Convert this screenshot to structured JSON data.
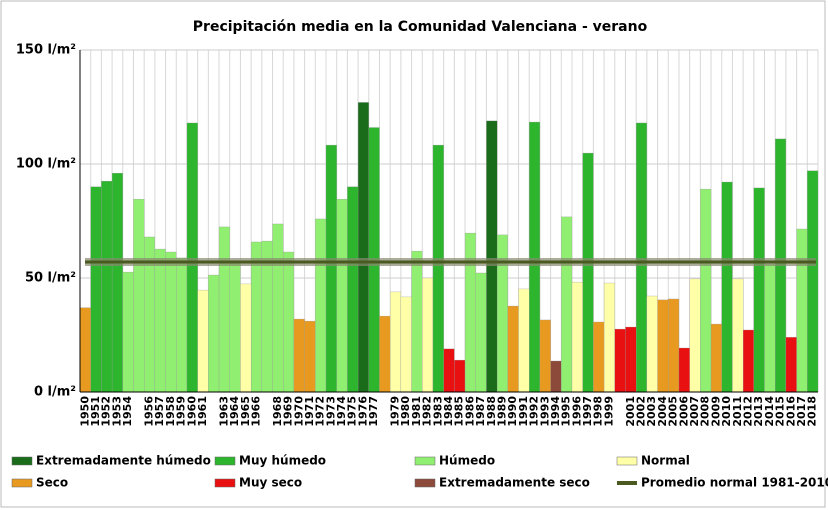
{
  "chart_data": {
    "type": "bar",
    "title": "Precipitación media en la Comunidad Valenciana - verano",
    "categories": [
      "1950",
      "1951",
      "1952",
      "1953",
      "1954",
      null,
      "1956",
      "1957",
      "1958",
      "1959",
      "1960",
      "1961",
      null,
      "1963",
      "1964",
      "1965",
      "1966",
      null,
      "1968",
      "1969",
      "1970",
      "1971",
      "1972",
      "1973",
      "1974",
      "1975",
      "1976",
      "1977",
      null,
      "1979",
      "1980",
      "1981",
      "1982",
      "1983",
      "1984",
      "1985",
      "1986",
      "1987",
      "1988",
      "1989",
      "1990",
      "1991",
      "1992",
      "1993",
      "1994",
      "1995",
      "1996",
      "1997",
      "1998",
      "1999",
      null,
      "2001",
      "2002",
      "2003",
      "2004",
      "2005",
      "2006",
      "2007",
      "2008",
      "2009",
      "2010",
      "2011",
      "2012",
      "2013",
      "2014",
      "2015",
      "2016",
      "2017",
      "2018"
    ],
    "values": [
      37,
      90,
      92.5,
      96,
      52.6,
      84.6,
      68,
      62.7,
      61.4,
      58.8,
      118,
      44.7,
      51.3,
      72.4,
      57,
      47.4,
      65.8,
      66.2,
      73.7,
      61.4,
      32,
      31.1,
      75.9,
      108.3,
      84.6,
      90,
      127,
      116,
      33.3,
      43.9,
      41.7,
      61.8,
      50,
      108.3,
      18.9,
      14,
      69.7,
      52.2,
      118.9,
      68.9,
      37.7,
      45.2,
      118.4,
      31.6,
      13.6,
      76.8,
      48.2,
      104.8,
      30.7,
      47.8,
      27.6,
      28.5,
      118,
      42.1,
      40.4,
      40.8,
      19.3,
      49.6,
      89,
      29.8,
      92.1,
      49.6,
      27.2,
      89.5,
      56,
      111,
      24,
      71.5,
      97
    ],
    "colors": [
      "#e89a20",
      "#2db52d",
      "#2db52d",
      "#2db52d",
      "#90ee70",
      "#90ee70",
      "#90ee70",
      "#90ee70",
      "#90ee70",
      "#90ee70",
      "#2db52d",
      "#ffffa8",
      "#90ee70",
      "#90ee70",
      "#90ee70",
      "#ffffa8",
      "#90ee70",
      "#90ee70",
      "#90ee70",
      "#90ee70",
      "#e89a20",
      "#e89a20",
      "#90ee70",
      "#2db52d",
      "#90ee70",
      "#2db52d",
      "#1a6b1a",
      "#2db52d",
      "#e89a20",
      "#ffffa8",
      "#ffffa8",
      "#90ee70",
      "#ffffa8",
      "#2db52d",
      "#e81010",
      "#e81010",
      "#90ee70",
      "#90ee70",
      "#1a6b1a",
      "#90ee70",
      "#e89a20",
      "#ffffa8",
      "#2db52d",
      "#e89a20",
      "#8b4a3a",
      "#90ee70",
      "#ffffa8",
      "#2db52d",
      "#e89a20",
      "#ffffa8",
      "#e81010",
      "#e81010",
      "#2db52d",
      "#ffffa8",
      "#e89a20",
      "#e89a20",
      "#e81010",
      "#ffffa8",
      "#90ee70",
      "#e89a20",
      "#2db52d",
      "#ffffa8",
      "#e81010",
      "#2db52d",
      "#90ee70",
      "#2db52d",
      "#e81010",
      "#90ee70",
      "#2db52d"
    ],
    "legend": [
      {
        "name": "Extremadamente húmedo",
        "color": "#1a6b1a"
      },
      {
        "name": "Muy húmedo",
        "color": "#2db52d"
      },
      {
        "name": "Húmedo",
        "color": "#90ee70"
      },
      {
        "name": "Normal",
        "color": "#ffffa8"
      },
      {
        "name": "Seco",
        "color": "#e89a20"
      },
      {
        "name": "Muy seco",
        "color": "#e81010"
      },
      {
        "name": "Extremadamente seco",
        "color": "#8b4a3a"
      }
    ],
    "average": {
      "name": "Promedio normal 1981-2010",
      "value": 57,
      "color": "#4a5a20"
    },
    "ylim": [
      0,
      150
    ],
    "yticks": [
      {
        "value": 0,
        "label": "0 l/m²"
      },
      {
        "value": 50,
        "label": "50 l/m²"
      },
      {
        "value": 100,
        "label": "100 l/m²"
      },
      {
        "value": 150,
        "label": "150 l/m²"
      }
    ],
    "grid": true
  }
}
